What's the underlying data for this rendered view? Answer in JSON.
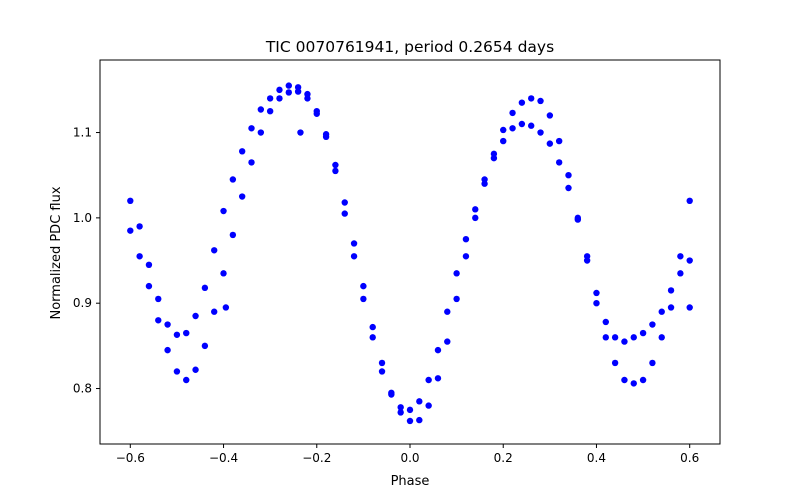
{
  "chart_data": {
    "type": "scatter",
    "title": "TIC 0070761941, period 0.2654 days",
    "xlabel": "Phase",
    "ylabel": "Normalized PDC flux",
    "xlim": [
      -0.665,
      0.665
    ],
    "ylim": [
      0.735,
      1.185
    ],
    "xticks": [
      -0.6,
      -0.4,
      -0.2,
      0.0,
      0.2,
      0.4,
      0.6
    ],
    "xtick_labels": [
      "−0.6",
      "−0.4",
      "−0.2",
      "0.0",
      "0.2",
      "0.4",
      "0.6"
    ],
    "yticks": [
      0.8,
      0.9,
      1.0,
      1.1
    ],
    "ytick_labels": [
      "0.8",
      "0.9",
      "1.0",
      "1.1"
    ],
    "grid": false,
    "legend": "none",
    "marker_color": "#0000ff",
    "series": [
      {
        "points": [
          [
            -0.6,
            1.02
          ],
          [
            -0.58,
            0.99
          ],
          [
            -0.56,
            0.945
          ],
          [
            -0.54,
            0.905
          ],
          [
            -0.52,
            0.875
          ],
          [
            -0.5,
            0.863
          ],
          [
            -0.48,
            0.865
          ],
          [
            -0.46,
            0.885
          ],
          [
            -0.44,
            0.918
          ],
          [
            -0.42,
            0.962
          ],
          [
            -0.4,
            1.008
          ],
          [
            -0.38,
            1.045
          ],
          [
            -0.36,
            1.078
          ],
          [
            -0.34,
            1.105
          ],
          [
            -0.32,
            1.127
          ],
          [
            -0.3,
            1.14
          ],
          [
            -0.28,
            1.15
          ],
          [
            -0.26,
            1.155
          ],
          [
            -0.24,
            1.153
          ],
          [
            -0.22,
            1.145
          ],
          [
            -0.2,
            1.125
          ],
          [
            -0.18,
            1.095
          ],
          [
            -0.16,
            1.055
          ],
          [
            -0.14,
            1.005
          ],
          [
            -0.12,
            0.955
          ],
          [
            -0.1,
            0.905
          ],
          [
            -0.08,
            0.86
          ],
          [
            -0.06,
            0.82
          ],
          [
            -0.04,
            0.793
          ],
          [
            -0.02,
            0.778
          ],
          [
            0.0,
            0.775
          ],
          [
            0.02,
            0.785
          ],
          [
            0.04,
            0.81
          ],
          [
            0.06,
            0.845
          ],
          [
            0.08,
            0.89
          ],
          [
            0.1,
            0.935
          ],
          [
            0.12,
            0.975
          ],
          [
            0.14,
            1.01
          ],
          [
            0.16,
            1.045
          ],
          [
            0.18,
            1.07
          ],
          [
            0.2,
            1.09
          ],
          [
            0.22,
            1.105
          ],
          [
            0.24,
            1.11
          ],
          [
            0.26,
            1.108
          ],
          [
            0.28,
            1.1
          ],
          [
            0.3,
            1.087
          ],
          [
            0.32,
            1.065
          ],
          [
            0.34,
            1.035
          ],
          [
            0.36,
            0.998
          ],
          [
            0.38,
            0.955
          ],
          [
            0.4,
            0.912
          ],
          [
            0.42,
            0.878
          ],
          [
            0.44,
            0.86
          ],
          [
            0.46,
            0.855
          ],
          [
            0.48,
            0.86
          ],
          [
            0.5,
            0.865
          ],
          [
            0.52,
            0.875
          ],
          [
            0.54,
            0.89
          ],
          [
            0.56,
            0.915
          ],
          [
            0.58,
            0.955
          ],
          [
            0.6,
            1.02
          ]
        ]
      },
      {
        "points": [
          [
            -0.6,
            0.985
          ],
          [
            -0.58,
            0.955
          ],
          [
            -0.56,
            0.92
          ],
          [
            -0.54,
            0.88
          ],
          [
            -0.52,
            0.845
          ],
          [
            -0.5,
            0.82
          ],
          [
            -0.48,
            0.81
          ],
          [
            -0.46,
            0.822
          ],
          [
            -0.44,
            0.85
          ],
          [
            -0.42,
            0.89
          ],
          [
            -0.4,
            0.935
          ],
          [
            -0.38,
            0.98
          ],
          [
            -0.36,
            1.025
          ],
          [
            -0.34,
            1.065
          ],
          [
            -0.32,
            1.1
          ],
          [
            -0.3,
            1.125
          ],
          [
            -0.28,
            1.14
          ],
          [
            -0.26,
            1.147
          ],
          [
            -0.24,
            1.148
          ],
          [
            -0.22,
            1.14
          ],
          [
            -0.2,
            1.122
          ],
          [
            -0.18,
            1.098
          ],
          [
            -0.16,
            1.062
          ],
          [
            -0.14,
            1.018
          ],
          [
            -0.12,
            0.97
          ],
          [
            -0.1,
            0.92
          ],
          [
            -0.08,
            0.872
          ],
          [
            -0.06,
            0.83
          ],
          [
            -0.04,
            0.795
          ],
          [
            -0.02,
            0.772
          ],
          [
            0.0,
            0.762
          ],
          [
            0.02,
            0.763
          ],
          [
            0.04,
            0.78
          ],
          [
            0.06,
            0.812
          ],
          [
            0.08,
            0.855
          ],
          [
            0.1,
            0.905
          ],
          [
            0.12,
            0.955
          ],
          [
            0.14,
            1.0
          ],
          [
            0.16,
            1.04
          ],
          [
            0.18,
            1.075
          ],
          [
            0.2,
            1.103
          ],
          [
            0.22,
            1.123
          ],
          [
            0.24,
            1.135
          ],
          [
            0.26,
            1.14
          ],
          [
            0.28,
            1.137
          ],
          [
            0.3,
            1.12
          ],
          [
            0.32,
            1.09
          ],
          [
            0.34,
            1.05
          ],
          [
            0.36,
            1.0
          ],
          [
            0.38,
            0.95
          ],
          [
            0.4,
            0.9
          ],
          [
            0.42,
            0.86
          ],
          [
            0.44,
            0.83
          ],
          [
            0.46,
            0.81
          ],
          [
            0.48,
            0.806
          ],
          [
            0.5,
            0.81
          ],
          [
            0.52,
            0.83
          ],
          [
            0.54,
            0.86
          ],
          [
            0.56,
            0.895
          ],
          [
            0.58,
            0.935
          ],
          [
            0.6,
            0.95
          ]
        ]
      }
    ],
    "outliers": [
      [
        -0.395,
        0.895
      ],
      [
        -0.235,
        1.1
      ],
      [
        0.6,
        0.895
      ]
    ]
  }
}
